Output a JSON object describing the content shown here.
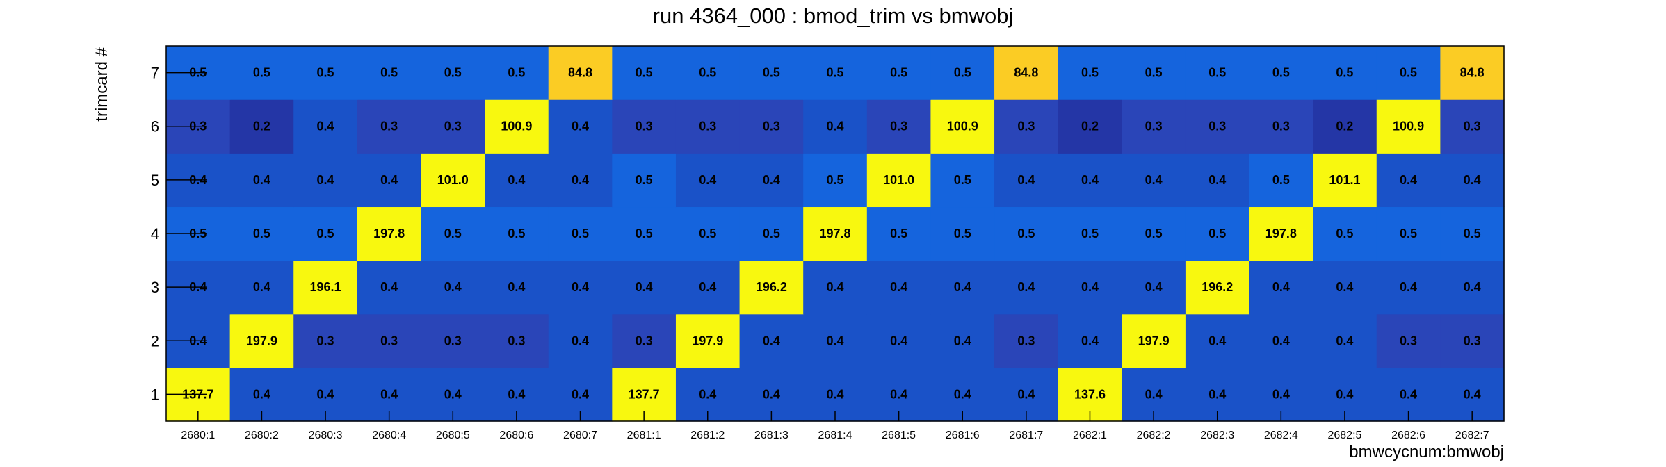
{
  "chart_data": {
    "type": "heatmap",
    "title": "run 4364_000 : bmod_trim vs bmwobj",
    "xlabel": "bmwcycnum:bmwobj",
    "ylabel": "trimcard #",
    "x_categories": [
      "2680:1",
      "2680:2",
      "2680:3",
      "2680:4",
      "2680:5",
      "2680:6",
      "2680:7",
      "2681:1",
      "2681:2",
      "2681:3",
      "2681:4",
      "2681:5",
      "2681:6",
      "2681:7",
      "2682:1",
      "2682:2",
      "2682:3",
      "2682:4",
      "2682:5",
      "2682:6",
      "2682:7"
    ],
    "y_categories": [
      "1",
      "2",
      "3",
      "4",
      "5",
      "6",
      "7"
    ],
    "values": [
      [
        137.7,
        0.4,
        0.4,
        0.4,
        0.4,
        0.4,
        0.4,
        137.7,
        0.4,
        0.4,
        0.4,
        0.4,
        0.4,
        0.4,
        137.6,
        0.4,
        0.4,
        0.4,
        0.4,
        0.4,
        0.4
      ],
      [
        0.4,
        197.9,
        0.3,
        0.3,
        0.3,
        0.3,
        0.4,
        0.3,
        197.9,
        0.4,
        0.4,
        0.4,
        0.4,
        0.3,
        0.4,
        197.9,
        0.4,
        0.4,
        0.4,
        0.3,
        0.3
      ],
      [
        0.4,
        0.4,
        196.1,
        0.4,
        0.4,
        0.4,
        0.4,
        0.4,
        0.4,
        196.2,
        0.4,
        0.4,
        0.4,
        0.4,
        0.4,
        0.4,
        196.2,
        0.4,
        0.4,
        0.4,
        0.4
      ],
      [
        0.5,
        0.5,
        0.5,
        197.8,
        0.5,
        0.5,
        0.5,
        0.5,
        0.5,
        0.5,
        197.8,
        0.5,
        0.5,
        0.5,
        0.5,
        0.5,
        0.5,
        197.8,
        0.5,
        0.5,
        0.5
      ],
      [
        0.4,
        0.4,
        0.4,
        0.4,
        101.0,
        0.4,
        0.4,
        0.5,
        0.4,
        0.4,
        0.5,
        101.0,
        0.5,
        0.4,
        0.4,
        0.4,
        0.4,
        0.5,
        101.1,
        0.4,
        0.4
      ],
      [
        0.3,
        0.2,
        0.4,
        0.3,
        0.3,
        100.9,
        0.4,
        0.3,
        0.3,
        0.3,
        0.4,
        0.3,
        100.9,
        0.3,
        0.2,
        0.3,
        0.3,
        0.3,
        0.2,
        100.9,
        0.3
      ],
      [
        0.5,
        0.5,
        0.5,
        0.5,
        0.5,
        0.5,
        84.8,
        0.5,
        0.5,
        0.5,
        0.5,
        0.5,
        0.5,
        84.8,
        0.5,
        0.5,
        0.5,
        0.5,
        0.5,
        0.5,
        84.8
      ]
    ],
    "colors": {
      "v0_2": "#2436a6",
      "v0_3": "#2a45b8",
      "v0_4": "#1a52c8",
      "v0_5": "#1564dd",
      "v84_8": "#fbcc24",
      "v100_plus": "#f8f80f"
    }
  }
}
